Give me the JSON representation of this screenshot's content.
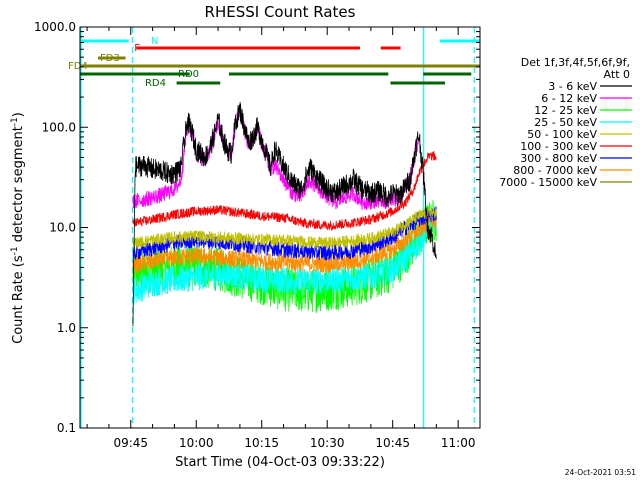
{
  "chart_data": {
    "type": "line",
    "title": "RHESSI Count Rates",
    "xlabel": "Start Time (04-Oct-03 09:33:22)",
    "ylabel": "Count Rate (s",
    "ylabel_sup": "-1",
    "ylabel_rest": " detector segment",
    "ylabel_sup2": "-1",
    "ylabel_end": ")",
    "x_range_minutes": [
      573.37,
      665.0
    ],
    "y_scale": "log",
    "ylim": [
      0.1,
      1000.0
    ],
    "x_ticks": [
      {
        "label": "09:45",
        "minutes": 585
      },
      {
        "label": "10:00",
        "minutes": 600
      },
      {
        "label": "10:15",
        "minutes": 615
      },
      {
        "label": "10:30",
        "minutes": 630
      },
      {
        "label": "10:45",
        "minutes": 645
      },
      {
        "label": "11:00",
        "minutes": 660
      }
    ],
    "y_ticks": [
      {
        "label": "0.1",
        "value": 0.1
      },
      {
        "label": "1.0",
        "value": 1.0
      },
      {
        "label": "10.0",
        "value": 10.0
      },
      {
        "label": "100.0",
        "value": 100.0
      },
      {
        "label": "1000.0",
        "value": 1000.0
      }
    ],
    "legend": {
      "header1": "Det 1f,3f,4f,5f,6f,9f,",
      "header2": "Att 0",
      "placement": "right"
    },
    "series": [
      {
        "name": "3 - 6 keV",
        "color": "#000000",
        "x": [
          585.5,
          586,
          588,
          590,
          592,
          594,
          595.5,
          596.5,
          597,
          598,
          599,
          600,
          601,
          602,
          603,
          604,
          605,
          606,
          607,
          608,
          609,
          610,
          611,
          612,
          613,
          614,
          615,
          616,
          617,
          618,
          620,
          622,
          624,
          626,
          628,
          630,
          632,
          634,
          636,
          638,
          640,
          642,
          644,
          645,
          646,
          647,
          648,
          649,
          650,
          651,
          652,
          653,
          654,
          655
        ],
        "y": [
          1.0,
          40,
          42,
          38,
          37,
          34,
          36,
          40,
          60,
          115,
          90,
          60,
          55,
          50,
          60,
          80,
          120,
          80,
          60,
          55,
          110,
          150,
          100,
          70,
          80,
          100,
          75,
          55,
          40,
          60,
          40,
          28,
          24,
          40,
          30,
          24,
          22,
          26,
          30,
          24,
          22,
          23,
          20,
          22,
          21,
          22,
          26,
          30,
          55,
          85,
          35,
          10,
          8,
          5
        ]
      },
      {
        "name": "6 - 12 keV",
        "color": "#ff00ff",
        "x": [
          585.5,
          588,
          590,
          592,
          594,
          595.5,
          596.5,
          597,
          598,
          599,
          600,
          601,
          602,
          603,
          604,
          605,
          606,
          607,
          608,
          609,
          610,
          611,
          612,
          613,
          614,
          615,
          616,
          617,
          618,
          620,
          622,
          624,
          626,
          628,
          630,
          632,
          634,
          636,
          638,
          640,
          642,
          644,
          645,
          646,
          647,
          648,
          649,
          650,
          651
        ],
        "y": [
          18,
          19,
          20,
          21,
          23,
          25,
          30,
          45,
          110,
          85,
          55,
          50,
          48,
          58,
          75,
          110,
          75,
          58,
          52,
          105,
          155,
          95,
          65,
          75,
          95,
          70,
          50,
          38,
          42,
          30,
          22,
          20,
          30,
          24,
          20,
          18,
          20,
          22,
          18,
          18,
          19,
          18,
          20,
          19,
          21,
          26,
          30,
          50,
          75
        ]
      },
      {
        "name": "12 - 25 keV",
        "color": "#00ff00",
        "x": [
          585.5,
          590,
          595,
          600,
          605,
          610,
          615,
          620,
          625,
          630,
          635,
          640,
          645,
          648,
          651,
          653,
          655
        ],
        "y": [
          3.5,
          3.8,
          4.0,
          4.2,
          3.8,
          3.2,
          2.8,
          2.4,
          2.3,
          2.4,
          2.6,
          3.0,
          3.8,
          5.5,
          8.0,
          11.0,
          12.0
        ]
      },
      {
        "name": "25 - 50 keV",
        "color": "#00ffff",
        "x": [
          585.5,
          590,
          595,
          600,
          605,
          610,
          615,
          620,
          625,
          630,
          635,
          640,
          645,
          648,
          651,
          653,
          655
        ],
        "y": [
          2.3,
          2.8,
          3.0,
          3.2,
          3.4,
          3.3,
          3.1,
          3.0,
          2.9,
          3.0,
          3.1,
          3.3,
          3.8,
          5.0,
          7.0,
          10.0,
          13.0
        ]
      },
      {
        "name": "50 - 100 keV",
        "color": "#c0c000",
        "x": [
          585.5,
          590,
          595,
          600,
          605,
          610,
          615,
          620,
          625,
          630,
          635,
          640,
          645,
          648,
          651,
          653,
          655
        ],
        "y": [
          7.0,
          7.5,
          8.0,
          8.2,
          8.0,
          7.8,
          7.6,
          7.5,
          7.2,
          7.0,
          7.3,
          7.8,
          9.0,
          11.0,
          13.0,
          14.0,
          14.0
        ]
      },
      {
        "name": "100 - 300 keV",
        "color": "#ff0000",
        "x": [
          585.5,
          590,
          595,
          600,
          605,
          610,
          615,
          620,
          625,
          630,
          635,
          640,
          645,
          648,
          650,
          651,
          652,
          653,
          654,
          655
        ],
        "y": [
          11.0,
          12.0,
          13.5,
          14.5,
          15.0,
          14.0,
          13.0,
          12.5,
          11.0,
          10.5,
          11.0,
          12.0,
          14.5,
          18.0,
          25.0,
          35.0,
          42.0,
          50.0,
          52.0,
          50.0
        ]
      },
      {
        "name": "300 - 800 keV",
        "color": "#0000ff",
        "x": [
          585.5,
          590,
          595,
          600,
          605,
          610,
          615,
          620,
          625,
          630,
          635,
          640,
          645,
          648,
          651,
          653,
          655
        ],
        "y": [
          5.5,
          6.2,
          7.0,
          7.5,
          7.2,
          6.8,
          6.4,
          6.0,
          5.8,
          5.6,
          5.8,
          6.5,
          8.0,
          10.0,
          12.0,
          13.0,
          14.0
        ]
      },
      {
        "name": "800 - 7000 keV",
        "color": "#ff8c00",
        "x": [
          585.5,
          590,
          595,
          600,
          605,
          610,
          615,
          620,
          625,
          630,
          635,
          640,
          645,
          648,
          651,
          653,
          655
        ],
        "y": [
          4.2,
          4.6,
          5.0,
          5.2,
          5.0,
          4.8,
          4.6,
          4.5,
          4.4,
          4.3,
          4.5,
          5.0,
          6.0,
          7.5,
          9.5,
          11.0,
          12.0
        ]
      },
      {
        "name": "7000 - 15000 keV",
        "color": "#808000",
        "x": [],
        "y": []
      }
    ],
    "attenuator_bars": [
      {
        "label": "N",
        "color": "#00ffff",
        "segments": [
          [
            573.5,
            584.5
          ],
          [
            655.8,
            665
          ]
        ]
      },
      {
        "label": "F",
        "color": "#ff0000",
        "segments": [
          [
            586.3,
            637.5
          ],
          [
            642.3,
            646.8
          ]
        ]
      },
      {
        "label": "FD3",
        "color": "#808000",
        "segments": [
          [
            577.5,
            583.8
          ]
        ]
      },
      {
        "label": "FD4",
        "color": "#808000",
        "segments": [
          [
            573.5,
            665
          ]
        ]
      },
      {
        "label": "RD0",
        "color": "#006400",
        "segments": [
          [
            573.5,
            598.5
          ],
          [
            607.5,
            644
          ],
          [
            652,
            663
          ]
        ]
      },
      {
        "label": "RD4",
        "color": "#006400",
        "segments": [
          [
            595.5,
            605.5
          ],
          [
            644.5,
            657
          ]
        ]
      }
    ],
    "vertical_lines": [
      {
        "minutes": 573.6,
        "style": "solid",
        "color": "#00ffff"
      },
      {
        "minutes": 585.4,
        "style": "dashed",
        "color": "#00ffff"
      },
      {
        "minutes": 652.1,
        "style": "solid",
        "color": "#00ffff"
      },
      {
        "minutes": 663.7,
        "style": "dashed",
        "color": "#00ffff"
      }
    ]
  },
  "footer": {
    "timestamp": "24-Oct-2021 03:51"
  }
}
